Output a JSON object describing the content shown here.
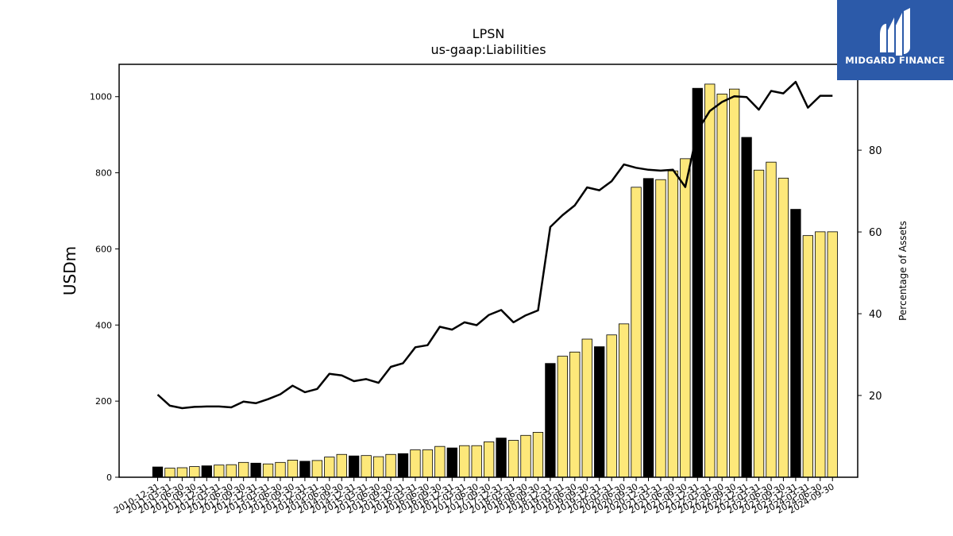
{
  "brand": {
    "name": "MIDGARD FINANCE",
    "logo_icon": "midgard-finance-logo-icon",
    "color": "#2c5aa9"
  },
  "chart_data": {
    "type": "bar",
    "title": "LPSN",
    "subtitle": "us-gaap:Liabilities",
    "ylabel": "USDm",
    "y2label": "Percentage of Assets",
    "ylim": [
      0,
      1085
    ],
    "y2lim": [
      0,
      101
    ],
    "yticks": [
      0,
      200,
      400,
      600,
      800,
      1000
    ],
    "y2ticks": [
      20,
      40,
      60,
      80
    ],
    "grid": false,
    "colors": {
      "quarter_bar": "#fde87a",
      "year_end_bar": "#000000",
      "line": "#000000"
    },
    "categories": [
      "2010-12-31",
      "2011-03-31",
      "2011-06-30",
      "2011-09-30",
      "2011-12-31",
      "2012-03-31",
      "2012-06-30",
      "2012-09-30",
      "2012-12-31",
      "2013-03-31",
      "2013-06-30",
      "2013-09-30",
      "2013-12-31",
      "2014-03-31",
      "2014-06-30",
      "2014-09-30",
      "2014-12-31",
      "2015-03-31",
      "2015-06-30",
      "2015-09-30",
      "2015-12-31",
      "2016-03-31",
      "2016-06-30",
      "2016-09-30",
      "2016-12-31",
      "2017-03-31",
      "2017-06-30",
      "2017-09-30",
      "2017-12-31",
      "2018-03-31",
      "2018-06-30",
      "2018-09-30",
      "2018-12-31",
      "2019-03-31",
      "2019-06-30",
      "2019-09-30",
      "2019-12-31",
      "2020-03-31",
      "2020-06-30",
      "2020-09-30",
      "2020-12-31",
      "2021-03-31",
      "2021-06-30",
      "2021-09-30",
      "2021-12-31",
      "2022-03-31",
      "2022-06-30",
      "2022-09-30",
      "2022-12-31",
      "2023-03-31",
      "2023-06-30",
      "2023-09-30",
      "2023-12-31",
      "2024-03-31",
      "2024-06-30",
      "2024-09-30"
    ],
    "series": [
      {
        "type": "bar",
        "values": [
          27,
          24,
          25,
          28,
          30,
          32,
          33,
          39,
          37,
          35,
          39,
          45,
          42,
          44,
          53,
          60,
          56,
          57,
          54,
          60,
          62,
          72,
          72,
          81,
          77,
          83,
          83,
          93,
          103,
          97,
          110,
          118,
          299,
          318,
          329,
          363,
          343,
          374,
          403,
          762,
          785,
          782,
          805,
          837,
          1022,
          1033,
          1007,
          1020,
          893,
          807,
          828,
          786,
          704,
          635,
          645,
          645
        ]
      },
      {
        "type": "line",
        "axis": "right",
        "values": [
          20.2,
          17.5,
          16.9,
          17.2,
          17.3,
          17.3,
          17.1,
          18.5,
          18.1,
          19.1,
          20.3,
          22.4,
          20.8,
          21.6,
          25.3,
          24.9,
          23.5,
          24.0,
          23.1,
          27.0,
          27.9,
          31.8,
          32.3,
          36.8,
          36.1,
          37.9,
          37.2,
          39.7,
          40.9,
          37.9,
          39.6,
          40.8,
          61.2,
          64.1,
          66.5,
          70.9,
          70.2,
          72.4,
          76.5,
          75.7,
          75.2,
          75.0,
          75.2,
          71.0,
          84.8,
          89.6,
          91.8,
          93.2,
          93.0,
          89.9,
          94.5,
          93.9,
          96.7,
          90.4,
          93.3,
          93.3
        ]
      }
    ]
  }
}
